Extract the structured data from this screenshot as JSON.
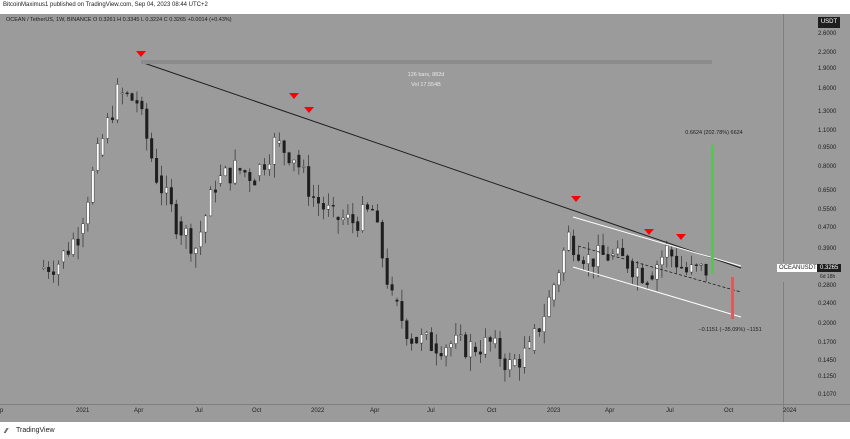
{
  "header": {
    "publisher_line": "BitcoinMaximus1 published on TradingView.com, Sep 04, 2023 08:44 UTC+2"
  },
  "legend": {
    "text": "OCEAN / TetherUS, 1W, BINANCE  O 0.3261  H 0.3345  L 0.3224  C 0.3265  +0.0014 (+0.43%)"
  },
  "price_axis": {
    "unit": "USDT",
    "labels": [
      "2.6000",
      "2.2000",
      "1.9000",
      "1.6000",
      "1.3000",
      "1.1000",
      "0.9500",
      "0.8000",
      "0.6500",
      "0.5500",
      "0.4700",
      "0.3900",
      "0.3200",
      "0.2800",
      "0.2400",
      "0.2000",
      "0.1700",
      "0.1450",
      "0.1250",
      "0.1070"
    ]
  },
  "time_axis": {
    "labels": [
      "p",
      "2021",
      "Apr",
      "Jul",
      "Oct",
      "2022",
      "Apr",
      "Jul",
      "Oct",
      "2023",
      "Apr",
      "Jul",
      "Oct",
      "2024"
    ]
  },
  "symbol_tag": {
    "symbol": "OCEANUSDT",
    "price": "0.3265",
    "countdown": "6d 18h"
  },
  "annotations": {
    "range_bars": "126 bars, 882d",
    "range_vol": "Vol 17.554B",
    "target_up": "0.6624 (202.78%) 6624",
    "target_down": "−0.1151 (−35.09%) −1151"
  },
  "footer": {
    "brand": "TradingView"
  },
  "colors": {
    "background": "#9b9b9b",
    "up_candle": "#ffffff",
    "down_candle": "#1e1e1e",
    "marker": "#ff0000",
    "up_target": "#5cc05c",
    "down_target": "#e05a5a"
  },
  "chart_data": {
    "type": "candlestick",
    "title": "OCEAN / TetherUS, 1W, BINANCE",
    "scale": "log",
    "ylim": [
      0.1,
      2.7
    ],
    "x_range": [
      "2020-11",
      "2024-02"
    ],
    "bearish_markers": [
      "2021-03",
      "2021-11",
      "2021-12",
      "2023-02",
      "2023-06",
      "2023-07"
    ],
    "series": [
      {
        "name": "OCEANUSDT",
        "close_approx": [
          [
            "2020-11",
            0.33
          ],
          [
            "2020-12",
            0.35
          ],
          [
            "2021-01",
            0.45
          ],
          [
            "2021-02",
            0.9
          ],
          [
            "2021-03",
            1.55
          ],
          [
            "2021-04",
            1.45
          ],
          [
            "2021-05",
            0.75
          ],
          [
            "2021-06",
            0.5
          ],
          [
            "2021-07",
            0.4
          ],
          [
            "2021-08",
            0.7
          ],
          [
            "2021-09",
            0.8
          ],
          [
            "2021-10",
            0.75
          ],
          [
            "2021-11",
            1.0
          ],
          [
            "2021-12",
            0.9
          ],
          [
            "2022-01",
            0.62
          ],
          [
            "2022-02",
            0.52
          ],
          [
            "2022-03",
            0.5
          ],
          [
            "2022-04",
            0.55
          ],
          [
            "2022-05",
            0.25
          ],
          [
            "2022-06",
            0.18
          ],
          [
            "2022-07",
            0.17
          ],
          [
            "2022-08",
            0.17
          ],
          [
            "2022-09",
            0.165
          ],
          [
            "2022-10",
            0.17
          ],
          [
            "2022-11",
            0.14
          ],
          [
            "2022-12",
            0.16
          ],
          [
            "2023-01",
            0.25
          ],
          [
            "2023-02",
            0.44
          ],
          [
            "2023-03",
            0.36
          ],
          [
            "2023-04",
            0.37
          ],
          [
            "2023-05",
            0.35
          ],
          [
            "2023-06",
            0.31
          ],
          [
            "2023-07",
            0.39
          ],
          [
            "2023-08",
            0.32
          ],
          [
            "2023-09",
            0.3265
          ]
        ]
      }
    ]
  }
}
